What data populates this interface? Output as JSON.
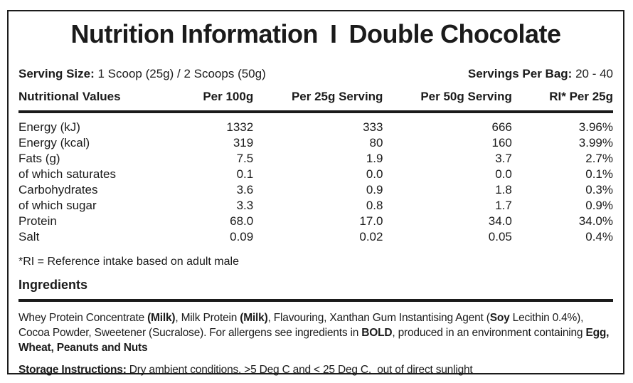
{
  "title": {
    "left": "Nutrition Information",
    "separator": "I",
    "right": "Double Chocolate"
  },
  "serving": {
    "size_label": "Serving Size:",
    "size_value": "1 Scoop (25g) / 2 Scoops (50g)",
    "per_bag_label": "Servings Per Bag:",
    "per_bag_value": "20 - 40"
  },
  "table": {
    "headers": [
      "Nutritional Values",
      "Per 100g",
      "Per 25g Serving",
      "Per 50g Serving",
      "RI* Per 25g"
    ],
    "rows": [
      {
        "name": "Energy (kJ)",
        "per100": "1332",
        "per25": "333",
        "per50": "666",
        "ri": "3.96%"
      },
      {
        "name": "Energy (kcal)",
        "per100": "319",
        "per25": "80",
        "per50": "160",
        "ri": "3.99%"
      },
      {
        "name": "Fats (g)",
        "per100": "7.5",
        "per25": "1.9",
        "per50": "3.7",
        "ri": "2.7%"
      },
      {
        "name": "of which saturates",
        "per100": "0.1",
        "per25": "0.0",
        "per50": "0.0",
        "ri": "0.1%"
      },
      {
        "name": "Carbohydrates",
        "per100": "3.6",
        "per25": "0.9",
        "per50": "1.8",
        "ri": "0.3%"
      },
      {
        "name": "of which sugar",
        "per100": "3.3",
        "per25": "0.8",
        "per50": "1.7",
        "ri": "0.9%"
      },
      {
        "name": "Protein",
        "per100": "68.0",
        "per25": "17.0",
        "per50": "34.0",
        "ri": "34.0%"
      },
      {
        "name": "Salt",
        "per100": "0.09",
        "per25": "0.02",
        "per50": "0.05",
        "ri": "0.4%"
      }
    ]
  },
  "footnote": "*RI = Reference intake based on adult male",
  "ingredients": {
    "heading": "Ingredients",
    "segments": [
      {
        "t": "Whey Protein Concentrate ",
        "b": false
      },
      {
        "t": "(Milk)",
        "b": true
      },
      {
        "t": ", Milk Protein ",
        "b": false
      },
      {
        "t": "(Milk)",
        "b": true
      },
      {
        "t": ", Flavouring, Xanthan Gum Instantising Agent (",
        "b": false
      },
      {
        "t": "Soy",
        "b": true
      },
      {
        "t": " Lecithin 0.4%), Cocoa Powder, Sweetener (Sucralose). For allergens see ingredients in ",
        "b": false
      },
      {
        "t": "BOLD",
        "b": true
      },
      {
        "t": ", produced in an environment containing ",
        "b": false
      },
      {
        "t": "Egg, Wheat, Peanuts and Nuts",
        "b": true
      }
    ]
  },
  "storage": {
    "label": "Storage Instructions:",
    "text": " Dry ambient conditions, >5 Deg C and < 25 Deg C,  out of direct sunlight"
  },
  "colors": {
    "text": "#1b1b1b",
    "border": "#1b1b1b",
    "background": "#ffffff"
  }
}
